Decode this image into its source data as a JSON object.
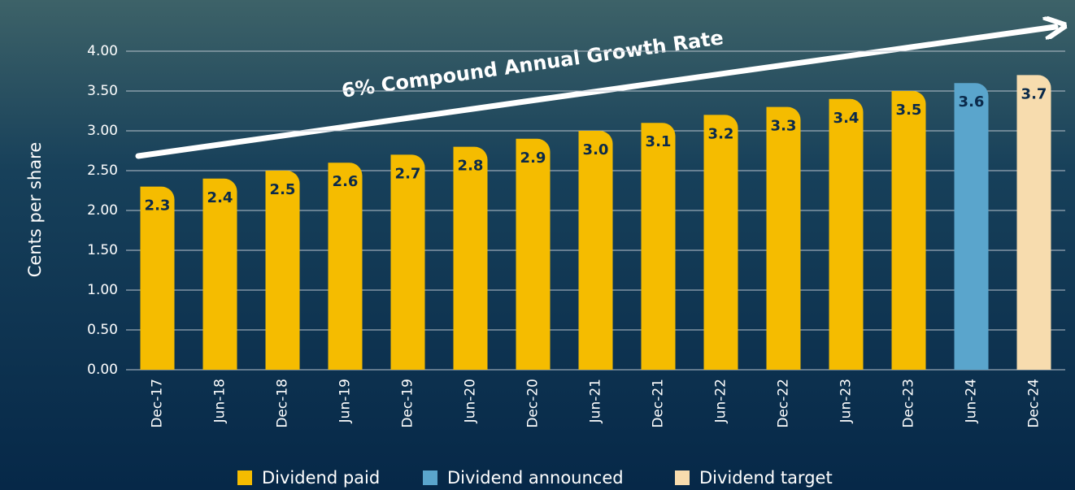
{
  "chart_data": {
    "type": "bar",
    "annotation": "6% Compound Annual Growth Rate",
    "y_label": "Cents per share",
    "categories": [
      "Dec-17",
      "Jun-18",
      "Dec-18",
      "Jun-19",
      "Dec-19",
      "Jun-20",
      "Dec-20",
      "Jun-21",
      "Dec-21",
      "Jun-22",
      "Dec-22",
      "Jun-23",
      "Dec-23",
      "Jun-24",
      "Dec-24"
    ],
    "series": [
      {
        "name": "Dividend paid",
        "color": "#f5bc00",
        "values": [
          2.3,
          2.4,
          2.5,
          2.6,
          2.7,
          2.8,
          2.9,
          3.0,
          3.1,
          3.2,
          3.3,
          3.4,
          3.5,
          null,
          null
        ],
        "value_labels": [
          "2.3",
          "2.4",
          "2.5",
          "2.6",
          "2.7",
          "2.8",
          "2.9",
          "3.0",
          "3.1",
          "3.2",
          "3.3",
          "3.4",
          "3.5",
          null,
          null
        ]
      },
      {
        "name": "Dividend announced",
        "color": "#5aa5cc",
        "values": [
          null,
          null,
          null,
          null,
          null,
          null,
          null,
          null,
          null,
          null,
          null,
          null,
          null,
          3.6,
          null
        ],
        "value_labels": [
          null,
          null,
          null,
          null,
          null,
          null,
          null,
          null,
          null,
          null,
          null,
          null,
          null,
          "3.6",
          null
        ]
      },
      {
        "name": "Dividend target",
        "color": "#f7dcae",
        "values": [
          null,
          null,
          null,
          null,
          null,
          null,
          null,
          null,
          null,
          null,
          null,
          null,
          null,
          null,
          3.7
        ],
        "value_labels": [
          null,
          null,
          null,
          null,
          null,
          null,
          null,
          null,
          null,
          null,
          null,
          null,
          null,
          null,
          "3.7"
        ]
      }
    ],
    "ylim": [
      0,
      4
    ],
    "yticks": [
      {
        "value": 0,
        "label": "0.00"
      },
      {
        "value": 0.5,
        "label": "0.50"
      },
      {
        "value": 1,
        "label": "1.00"
      },
      {
        "value": 1.5,
        "label": "1.50"
      },
      {
        "value": 2,
        "label": "2.00"
      },
      {
        "value": 2.5,
        "label": "2.50"
      },
      {
        "value": 3,
        "label": "3.00"
      },
      {
        "value": 3.5,
        "label": "3.50"
      },
      {
        "value": 4,
        "label": "4.00"
      }
    ],
    "grid": true
  }
}
